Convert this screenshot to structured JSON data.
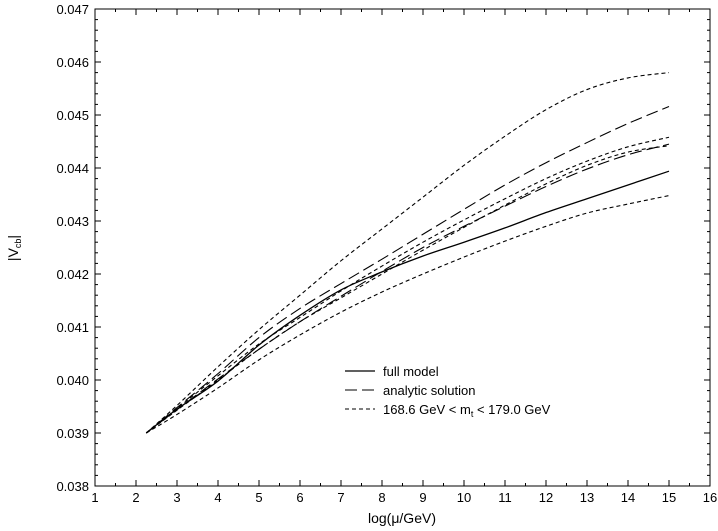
{
  "chart_data": {
    "type": "line",
    "title": "",
    "xlabel": "log(μ/GeV)",
    "ylabel_main": "|V",
    "ylabel_sub": "cb",
    "ylabel_end": "|",
    "xlim": [
      1,
      16
    ],
    "ylim": [
      0.038,
      0.047
    ],
    "xticks": [
      1,
      2,
      3,
      4,
      5,
      6,
      7,
      8,
      9,
      10,
      11,
      12,
      13,
      14,
      15,
      16
    ],
    "yticks": [
      0.038,
      0.039,
      0.04,
      0.041,
      0.042,
      0.043,
      0.044,
      0.045,
      0.046,
      0.047
    ],
    "ytick_labels": [
      "0.038",
      "0.039",
      "0.040",
      "0.041",
      "0.042",
      "0.043",
      "0.044",
      "0.045",
      "0.046",
      "0.047"
    ],
    "grid": false,
    "legend_position": "bottom-right",
    "legend": [
      {
        "label": "full model",
        "style": "solid"
      },
      {
        "label": "analytic solution",
        "style": "long-dash"
      },
      {
        "label_pre": "168.6 GeV < m",
        "label_sub": "t",
        "label_post": " < 179.0 GeV",
        "style": "short-dash"
      }
    ],
    "x": [
      2.25,
      3,
      4,
      5,
      6,
      7,
      8,
      9,
      10,
      11,
      12,
      13,
      14,
      15
    ],
    "series": [
      {
        "role": "full-model",
        "style": "solid",
        "values": [
          0.039,
          0.03945,
          0.03998,
          0.04066,
          0.04122,
          0.0417,
          0.04204,
          0.04234,
          0.0426,
          0.04287,
          0.04316,
          0.04342,
          0.04368,
          0.04394
        ]
      },
      {
        "role": "analytic-upper",
        "style": "long-dash",
        "values": [
          0.039,
          0.03948,
          0.04012,
          0.0408,
          0.04135,
          0.04182,
          0.04228,
          0.04275,
          0.04322,
          0.04368,
          0.0441,
          0.04448,
          0.04484,
          0.04516
        ]
      },
      {
        "role": "analytic-lower",
        "style": "long-dash",
        "values": [
          0.039,
          0.03944,
          0.04002,
          0.04058,
          0.0411,
          0.04158,
          0.04205,
          0.0425,
          0.0429,
          0.04328,
          0.04365,
          0.04398,
          0.04425,
          0.04445
        ]
      },
      {
        "role": "mt-band-high",
        "style": "short-dash",
        "values": [
          0.039,
          0.03952,
          0.04025,
          0.04095,
          0.0416,
          0.04225,
          0.04285,
          0.04345,
          0.04405,
          0.0446,
          0.0451,
          0.04548,
          0.0457,
          0.0458
        ]
      },
      {
        "role": "mt-band-mid",
        "style": "short-dash",
        "values": [
          0.039,
          0.03946,
          0.04008,
          0.04068,
          0.04118,
          0.04168,
          0.04215,
          0.0426,
          0.04302,
          0.04342,
          0.0438,
          0.04413,
          0.0444,
          0.04458
        ]
      },
      {
        "role": "mt-band-mid2",
        "style": "short-dash",
        "values": [
          0.039,
          0.03943,
          0.04,
          0.04058,
          0.0411,
          0.04155,
          0.042,
          0.04245,
          0.04288,
          0.0433,
          0.0437,
          0.04405,
          0.0443,
          0.04442
        ]
      },
      {
        "role": "mt-band-low",
        "style": "short-dash",
        "values": [
          0.039,
          0.03935,
          0.03985,
          0.04038,
          0.04085,
          0.04128,
          0.04166,
          0.042,
          0.04232,
          0.04262,
          0.0429,
          0.04315,
          0.04332,
          0.04348
        ]
      }
    ]
  }
}
